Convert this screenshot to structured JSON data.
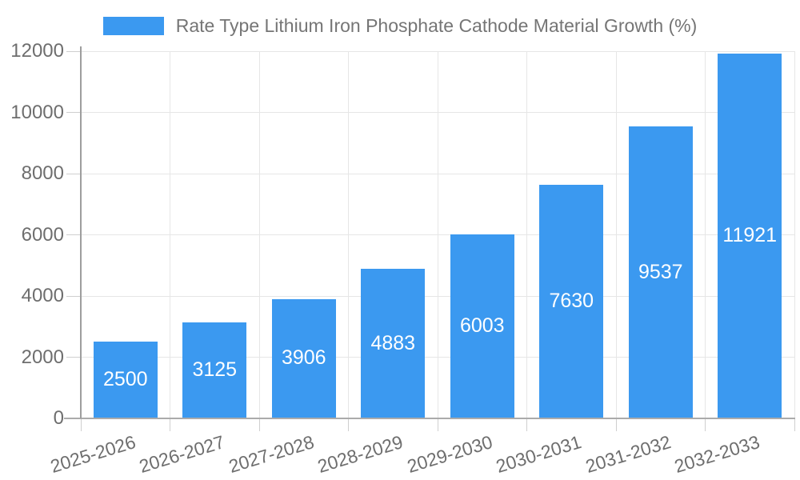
{
  "chart_data": {
    "type": "bar",
    "title": "",
    "legend": "Rate Type Lithium Iron Phosphate Cathode Material Growth (%)",
    "legend_position": "top-center",
    "categories": [
      "2025-2026",
      "2026-2027",
      "2027-2028",
      "2028-2029",
      "2029-2030",
      "2030-2031",
      "2031-2032",
      "2032-2033"
    ],
    "values": [
      2500,
      3125,
      3906,
      4883,
      6003,
      7630,
      9537,
      11921
    ],
    "xlabel": "",
    "ylabel": "",
    "ylim": [
      0,
      12000
    ],
    "yticks": [
      0,
      2000,
      4000,
      6000,
      8000,
      10000,
      12000
    ],
    "grid": true,
    "x_label_rotation_deg": -17,
    "colors": {
      "bar": "#3b99f0",
      "value_label": "#ffffff",
      "axis_text": "#6e6e6e",
      "legend_text": "#757575",
      "gridline": "#e6e6e6",
      "axis_line": "#9e9e9e"
    }
  }
}
